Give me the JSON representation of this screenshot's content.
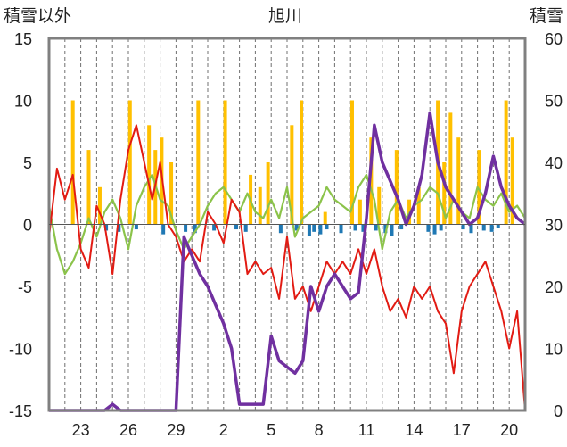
{
  "chart_data": {
    "type": "line",
    "title": "旭川",
    "y_left_label": "積雪以外",
    "y_right_label": "積雪",
    "y_left_range": [
      -15,
      15
    ],
    "y_left_ticks": [
      "15",
      "10",
      "5",
      "0",
      "-5",
      "-10",
      "-15"
    ],
    "y_right_range": [
      0,
      60
    ],
    "y_right_ticks": [
      "60",
      "50",
      "40",
      "30",
      "20",
      "10",
      "0"
    ],
    "x_tick_labels": [
      "23",
      "26",
      "29",
      "2",
      "5",
      "8",
      "11",
      "14",
      "17",
      "20"
    ],
    "x_tick_day_index": [
      2,
      5,
      8,
      11,
      14,
      17,
      20,
      23,
      26,
      29
    ],
    "day_range": [
      0,
      30
    ],
    "colors": {
      "temperature_max": "#8BC34A",
      "temperature_min": "#E21B13",
      "snow_depth": "#7030A0",
      "precipitation": "#FFC000",
      "sunshine": "#1F78B4",
      "axis": "#808080",
      "grid": "#707070"
    },
    "series": [
      {
        "key": "temperature_max",
        "axis": "left",
        "x": [
          0,
          0.5,
          1,
          1.5,
          2,
          2.5,
          3,
          3.5,
          4,
          4.5,
          5,
          5.5,
          6,
          6.5,
          7,
          7.5,
          8,
          8.5,
          9,
          9.5,
          10,
          10.5,
          11,
          11.5,
          12,
          12.5,
          13,
          13.5,
          14,
          14.5,
          15,
          15.5,
          16,
          16.5,
          17,
          17.5,
          18,
          18.5,
          19,
          19.5,
          20,
          20.5,
          21,
          21.5,
          22,
          22.5,
          23,
          23.5,
          24,
          24.5,
          25,
          25.5,
          26,
          26.5,
          27,
          27.5,
          28,
          28.5,
          29,
          29.5,
          30
        ],
        "y": [
          1.5,
          -2,
          -4,
          -3,
          -1.5,
          0.5,
          -1,
          1,
          2,
          0.5,
          -2,
          1.5,
          3,
          4,
          2,
          1.5,
          -0.5,
          -2,
          -1,
          0,
          1.5,
          2.5,
          3,
          2,
          1,
          2.5,
          1,
          0.5,
          2,
          0.5,
          3,
          -1,
          0.5,
          1,
          1.5,
          3,
          2,
          1.5,
          1,
          3,
          4,
          2,
          -2,
          1,
          2,
          0.5,
          1.5,
          2,
          3,
          2.5,
          0.5,
          2,
          1,
          0.5,
          3,
          2,
          1.5,
          2.5,
          1,
          1.5,
          0.5
        ]
      },
      {
        "key": "temperature_min",
        "axis": "left",
        "x": [
          0,
          0.5,
          1,
          1.5,
          2,
          2.5,
          3,
          3.5,
          4,
          4.5,
          5,
          5.5,
          6,
          6.5,
          7,
          7.5,
          8,
          8.5,
          9,
          9.5,
          10,
          10.5,
          11,
          11.5,
          12,
          12.5,
          13,
          13.5,
          14,
          14.5,
          15,
          15.5,
          16,
          16.5,
          17,
          17.5,
          18,
          18.5,
          19,
          19.5,
          20,
          20.5,
          21,
          21.5,
          22,
          22.5,
          23,
          23.5,
          24,
          24.5,
          25,
          25.5,
          26,
          26.5,
          27,
          27.5,
          28,
          28.5,
          29,
          29.5,
          30
        ],
        "y": [
          -1,
          4.5,
          2,
          4,
          -2,
          -3.5,
          1.5,
          0,
          -4,
          2,
          6,
          8,
          5,
          2,
          5,
          0,
          -1,
          -3,
          -2,
          -3,
          1,
          0,
          -1.5,
          2,
          1,
          -4,
          -3,
          -4,
          -3.5,
          -6,
          -1,
          -6,
          -5,
          -7,
          -5,
          -3,
          -4,
          -3,
          -4,
          -2,
          -4,
          -2,
          -5,
          -7,
          -6,
          -7.5,
          -5,
          -6,
          -5,
          -7,
          -8,
          -12,
          -7,
          -5,
          -4,
          -3,
          -5,
          -7,
          -10,
          -7,
          -15
        ]
      },
      {
        "key": "snow_depth",
        "axis": "right",
        "x": [
          0,
          0.5,
          1,
          1.5,
          2,
          2.5,
          3,
          3.5,
          4,
          4.5,
          5,
          5.5,
          6,
          6.5,
          7,
          7.5,
          8,
          8.5,
          9,
          9.5,
          10,
          10.5,
          11,
          11.5,
          12,
          12.5,
          13,
          13.5,
          14,
          14.5,
          15,
          15.5,
          16,
          16.5,
          17,
          17.5,
          18,
          18.5,
          19,
          19.5,
          20,
          20.5,
          21,
          21.5,
          22,
          22.5,
          23,
          23.5,
          24,
          24.5,
          25,
          25.5,
          26,
          26.5,
          27,
          27.5,
          28,
          28.5,
          29,
          29.5,
          30
        ],
        "y": [
          0,
          0,
          0,
          0,
          0,
          0,
          0,
          0,
          1,
          0,
          0,
          0,
          0,
          0,
          0,
          0,
          0,
          28,
          25,
          22,
          20,
          17,
          14,
          10,
          1,
          1,
          1,
          1,
          12,
          8,
          7,
          6,
          8,
          20,
          16,
          20,
          22,
          20,
          18,
          19,
          31,
          46,
          40,
          37,
          34,
          30,
          33,
          38,
          48,
          40,
          36,
          34,
          32,
          30,
          31,
          35,
          41,
          36,
          33,
          31,
          30
        ]
      },
      {
        "key": "precipitation",
        "axis": "left",
        "type": "bar",
        "x": [
          1.5,
          2.5,
          3.2,
          5.1,
          6.3,
          6.7,
          7.1,
          7.7,
          9.4,
          11.1,
          12.7,
          13.3,
          13.8,
          15.3,
          15.9,
          17.4,
          19.1,
          19.6,
          20.3,
          20.8,
          21.9,
          22.7,
          23.3,
          24.5,
          24.9,
          25.3,
          25.8,
          27.1,
          28.8,
          29.2
        ],
        "y": [
          10,
          6,
          3,
          10,
          8,
          6,
          7,
          5,
          10,
          10,
          4,
          3,
          5,
          8,
          10,
          1,
          10,
          2,
          7,
          3,
          6,
          2,
          3,
          10,
          5,
          9,
          7,
          6,
          10,
          7
        ]
      },
      {
        "key": "sunshine",
        "axis": "left",
        "type": "bar",
        "x": [
          3.6,
          4.4,
          5.5,
          7.2,
          8.6,
          9.2,
          10.4,
          11.8,
          12.4,
          14.6,
          15.6,
          16.4,
          16.7,
          17.1,
          17.5,
          18.4,
          19.3,
          19.8,
          20.6,
          21.2,
          21.6,
          22.2,
          23.9,
          24.3,
          24.7,
          26.1,
          26.6,
          27.4,
          27.9,
          28.3
        ],
        "y": [
          -0.5,
          -0.6,
          -0.4,
          -0.8,
          -0.6,
          -0.7,
          -0.5,
          -0.4,
          -0.6,
          -0.7,
          -0.5,
          -0.9,
          -0.6,
          -0.8,
          -0.4,
          -0.7,
          -0.5,
          -0.6,
          -0.5,
          -0.7,
          -0.9,
          -0.4,
          -0.6,
          -0.8,
          -0.5,
          -0.4,
          -0.7,
          -0.5,
          -0.6,
          -0.3
        ]
      }
    ]
  }
}
